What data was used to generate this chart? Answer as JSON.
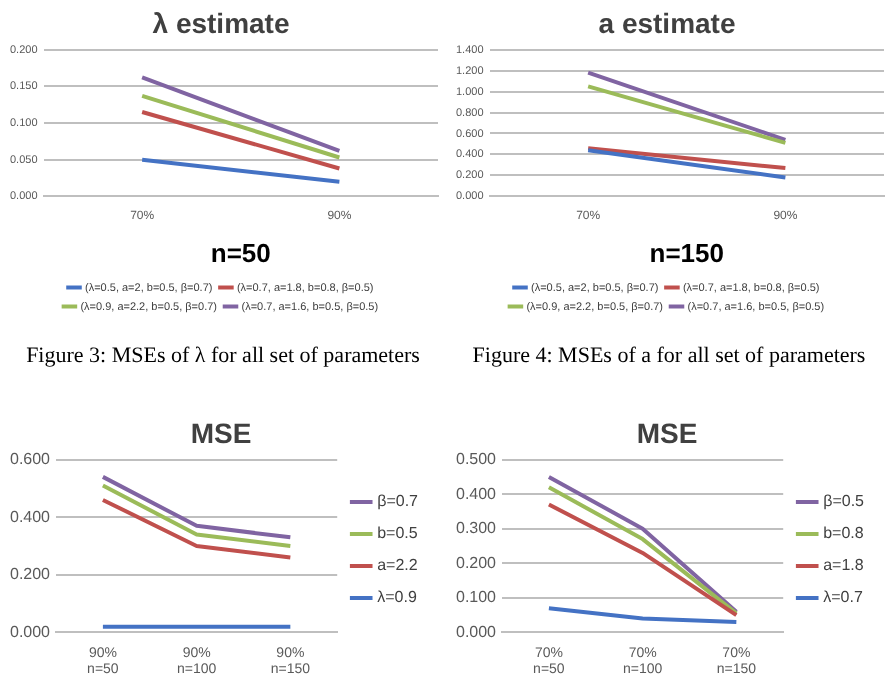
{
  "chart_data": [
    {
      "type": "line",
      "title": "λ estimate",
      "xlabel": "n=50",
      "categories": [
        "70%",
        "90%"
      ],
      "series": [
        {
          "name": "(λ=0.5, a=2, b=0.5, β=0.7)",
          "color": "#4472c4",
          "values": [
            0.05,
            0.02
          ]
        },
        {
          "name": "(λ=0.7, a=1.8, b=0.8, β=0.5)",
          "color": "#c0504d",
          "values": [
            0.115,
            0.038
          ]
        },
        {
          "name": "(λ=0.9, a=2.2, b=0.5, β=0.7)",
          "color": "#9bbb59",
          "values": [
            0.137,
            0.053
          ]
        },
        {
          "name": "(λ=0.7, a=1.6, b=0.5, β=0.5)",
          "color": "#8064a2",
          "values": [
            0.162,
            0.062
          ]
        }
      ],
      "ylim": [
        0,
        0.2
      ],
      "yticks": [
        {
          "value": 0,
          "label": "0.000"
        },
        {
          "value": 0.05,
          "label": "0.050"
        },
        {
          "value": 0.1,
          "label": "0.100"
        },
        {
          "value": 0.15,
          "label": "0.150"
        },
        {
          "value": 0.2,
          "label": "0.200"
        }
      ],
      "grid": "y",
      "legend": "bottom",
      "marker": "none",
      "annotations": [
        "Figure 3: MSEs of λ for all set of parameters"
      ]
    },
    {
      "type": "line",
      "title": "a estimate",
      "xlabel": "n=150",
      "categories": [
        "70%",
        "90%"
      ],
      "series": [
        {
          "name": "(λ=0.5, a=2, b=0.5, β=0.7)",
          "color": "#4472c4",
          "values": [
            0.44,
            0.18
          ]
        },
        {
          "name": "(λ=0.7, a=1.8, b=0.8, β=0.5)",
          "color": "#c0504d",
          "values": [
            0.46,
            0.27
          ]
        },
        {
          "name": "(λ=0.9, a=2.2, b=0.5, β=0.7)",
          "color": "#9bbb59",
          "values": [
            1.05,
            0.51
          ]
        },
        {
          "name": "(λ=0.7, a=1.6, b=0.5, β=0.5)",
          "color": "#8064a2",
          "values": [
            1.18,
            0.54
          ]
        }
      ],
      "ylim": [
        0,
        1.4
      ],
      "yticks": [
        {
          "value": 0,
          "label": "0.000"
        },
        {
          "value": 0.2,
          "label": "0.200"
        },
        {
          "value": 0.4,
          "label": "0.400"
        },
        {
          "value": 0.6,
          "label": "0.600"
        },
        {
          "value": 0.8,
          "label": "0.800"
        },
        {
          "value": 1,
          "label": "1.000"
        },
        {
          "value": 1.2,
          "label": "1.200"
        },
        {
          "value": 1.4,
          "label": "1.400"
        }
      ],
      "grid": "y",
      "legend": "bottom",
      "marker": "none",
      "annotations": [
        "Figure 4: MSEs of a for all set of parameters"
      ]
    },
    {
      "type": "line",
      "title": "MSE",
      "categories": [
        "90%\nn=50",
        "90%\nn=100",
        "90%\nn=150"
      ],
      "series": [
        {
          "name": "λ=0.9",
          "color": "#4472c4",
          "values": [
            0.02,
            0.02,
            0.02
          ]
        },
        {
          "name": "a=2.2",
          "color": "#c0504d",
          "values": [
            0.46,
            0.3,
            0.26
          ]
        },
        {
          "name": "b=0.5",
          "color": "#9bbb59",
          "values": [
            0.51,
            0.34,
            0.3
          ]
        },
        {
          "name": "β=0.7",
          "color": "#8064a2",
          "values": [
            0.54,
            0.37,
            0.33
          ]
        }
      ],
      "ylim": [
        0,
        0.6
      ],
      "yticks": [
        {
          "value": 0,
          "label": "0.000"
        },
        {
          "value": 0.2,
          "label": "0.200"
        },
        {
          "value": 0.4,
          "label": "0.400"
        },
        {
          "value": 0.6,
          "label": "0.600"
        }
      ],
      "grid": "y",
      "legend": "right",
      "marker": "none"
    },
    {
      "type": "line",
      "title": "MSE",
      "categories": [
        "70%\nn=50",
        "70%\nn=100",
        "70%\nn=150"
      ],
      "series": [
        {
          "name": "λ=0.7",
          "color": "#4472c4",
          "values": [
            0.07,
            0.04,
            0.03
          ]
        },
        {
          "name": "a=1.8",
          "color": "#c0504d",
          "values": [
            0.37,
            0.23,
            0.05
          ]
        },
        {
          "name": "b=0.8",
          "color": "#9bbb59",
          "values": [
            0.42,
            0.27,
            0.055
          ]
        },
        {
          "name": "β=0.5",
          "color": "#8064a2",
          "values": [
            0.45,
            0.3,
            0.06
          ]
        }
      ],
      "ylim": [
        0,
        0.5
      ],
      "yticks": [
        {
          "value": 0,
          "label": "0.000"
        },
        {
          "value": 0.1,
          "label": "0.100"
        },
        {
          "value": 0.2,
          "label": "0.200"
        },
        {
          "value": 0.3,
          "label": "0.300"
        },
        {
          "value": 0.4,
          "label": "0.400"
        },
        {
          "value": 0.5,
          "label": "0.500"
        }
      ],
      "grid": "y",
      "legend": "right",
      "marker": "none"
    }
  ]
}
